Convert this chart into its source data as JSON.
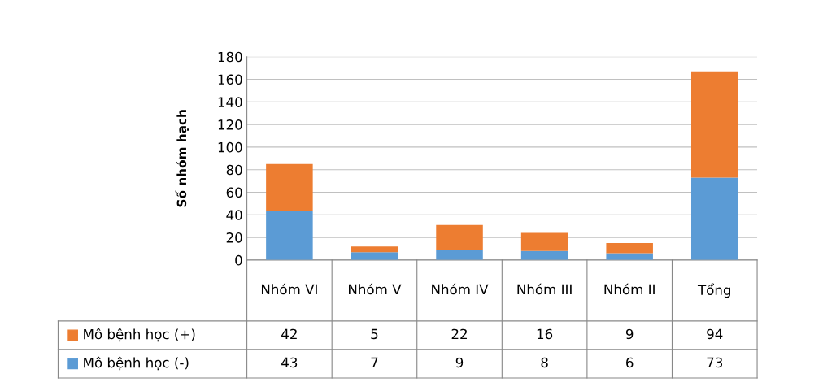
{
  "chart_data": {
    "type": "bar",
    "stacked": true,
    "ylabel": "Số nhóm hạch",
    "categories": [
      "Nhóm VI",
      "Nhóm V",
      "Nhóm IV",
      "Nhóm III",
      "Nhóm II",
      "Tổng"
    ],
    "series": [
      {
        "name": "Mô bệnh học (-)",
        "color": "#5b9bd5",
        "values": [
          43,
          7,
          9,
          8,
          6,
          73
        ]
      },
      {
        "name": "Mô bệnh học (+)",
        "color": "#ed7d31",
        "values": [
          42,
          5,
          22,
          16,
          9,
          94
        ]
      }
    ],
    "ylim": [
      0,
      180
    ],
    "yticks": [
      0,
      20,
      40,
      60,
      80,
      100,
      120,
      140,
      160,
      180
    ],
    "grid": "y",
    "data_labels": true,
    "legend": "bottom"
  }
}
